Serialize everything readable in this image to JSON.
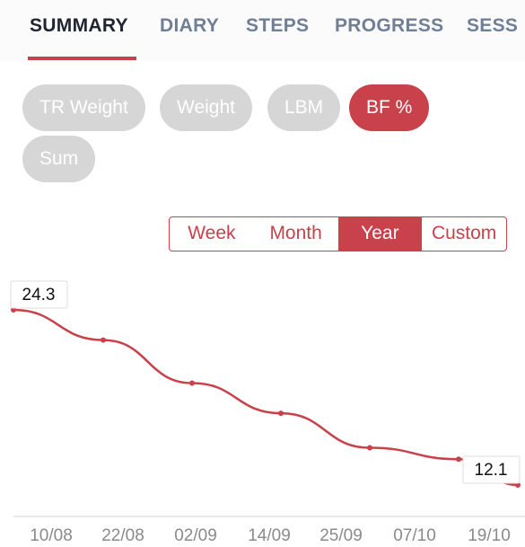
{
  "tabs": [
    {
      "label": "SUMMARY",
      "active": true
    },
    {
      "label": "DIARY"
    },
    {
      "label": "STEPS"
    },
    {
      "label": "PROGRESS"
    },
    {
      "label": "SESS"
    }
  ],
  "chips": [
    {
      "label": "TR Weight"
    },
    {
      "label": "Weight"
    },
    {
      "label": "LBM"
    },
    {
      "label": "BF %",
      "active": true
    },
    {
      "label": "Sum"
    }
  ],
  "ranges": [
    {
      "label": "Week"
    },
    {
      "label": "Month"
    },
    {
      "label": "Year",
      "active": true
    },
    {
      "label": "Custom"
    }
  ],
  "chart_data": {
    "type": "line",
    "categories": [
      "10/08",
      "22/08",
      "02/09",
      "14/09",
      "25/09",
      "07/10",
      "19/10"
    ],
    "series": [
      {
        "name": "BF %",
        "color": "#c8414b",
        "values": [
          24.3,
          22.2,
          19.2,
          17.1,
          14.7,
          13.9,
          12.1
        ]
      }
    ],
    "value_label_indices": [
      0,
      6
    ]
  }
}
